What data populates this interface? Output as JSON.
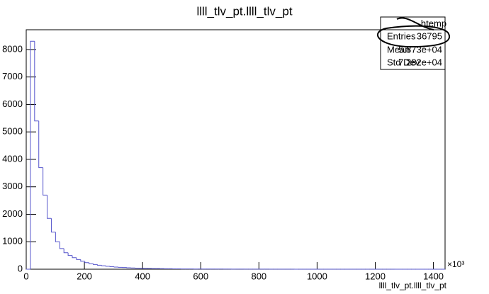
{
  "chart_data": {
    "type": "histogram",
    "title": "llll_tlv_pt.llll_tlv_pt",
    "x_label": "llll_tlv_pt.llll_tlv_pt",
    "x_multiplier": "×10³",
    "color": "#5555cc",
    "bins": [
      0,
      14.4,
      28.8,
      43.2,
      57.6,
      72,
      86.4,
      100.8,
      115.2,
      129.6,
      144,
      158.4,
      172.8,
      187.2,
      201.6,
      216,
      230.4,
      244.8,
      259.2,
      273.6,
      288,
      302.4,
      316.8,
      331.2,
      345.6,
      360,
      374.4,
      388.8,
      403.2,
      417.6,
      432,
      446.4,
      460.8,
      475.2,
      489.6,
      504,
      518.4,
      532.8,
      547.2,
      561.6,
      576,
      590.4,
      604.8,
      619.2,
      633.6,
      648,
      662.4,
      676.8,
      691.2,
      705.6,
      720,
      734.4,
      748.8,
      763.2,
      777.6,
      792,
      806.4,
      820.8,
      835.2,
      849.6,
      864,
      878.4,
      892.8,
      907.2,
      921.6,
      936,
      950.4,
      964.8,
      979.2,
      993.6,
      1008,
      1022.4,
      1036.8,
      1051.2,
      1065.6,
      1080,
      1094.4,
      1108.8,
      1123.2,
      1137.6,
      1152,
      1166.4,
      1180.8,
      1195.2,
      1209.6,
      1224,
      1238.4,
      1252.8,
      1267.2,
      1281.6,
      1296,
      1310.4,
      1324.8,
      1339.2,
      1353.6,
      1368,
      1382.4,
      1396.8,
      1411.2,
      1425.6,
      1440
    ],
    "values": [
      0,
      8300,
      5400,
      3700,
      2700,
      1850,
      1350,
      1000,
      750,
      600,
      500,
      420,
      350,
      290,
      240,
      200,
      170,
      145,
      125,
      105,
      90,
      78,
      68,
      60,
      52,
      45,
      40,
      35,
      31,
      27,
      24,
      21,
      19,
      17,
      15,
      13,
      12,
      11,
      10,
      9,
      8,
      8,
      7,
      7,
      6,
      6,
      5,
      5,
      5,
      4,
      4,
      4,
      3,
      3,
      3,
      3,
      3,
      2,
      2,
      2,
      2,
      2,
      2,
      2,
      1,
      1,
      1,
      1,
      1,
      1,
      1,
      1,
      1,
      1,
      1,
      1,
      1,
      1,
      1,
      1,
      1,
      1,
      1,
      1,
      1,
      1,
      1,
      1,
      0,
      0,
      0,
      0,
      0,
      0,
      0,
      0,
      0,
      0,
      0,
      0
    ],
    "xlim": [
      0,
      1440
    ],
    "ylim": [
      0,
      8720
    ],
    "xticks": [
      0,
      200,
      400,
      600,
      800,
      1000,
      1200,
      1400
    ],
    "yticks": [
      0,
      1000,
      2000,
      3000,
      4000,
      5000,
      6000,
      7000,
      8000
    ],
    "stats": {
      "title": "htemp",
      "rows": [
        [
          "Entries",
          "36795"
        ],
        [
          "Mean",
          "5.873e+04"
        ],
        [
          "Std Dev",
          "7.282e+04"
        ]
      ]
    }
  }
}
